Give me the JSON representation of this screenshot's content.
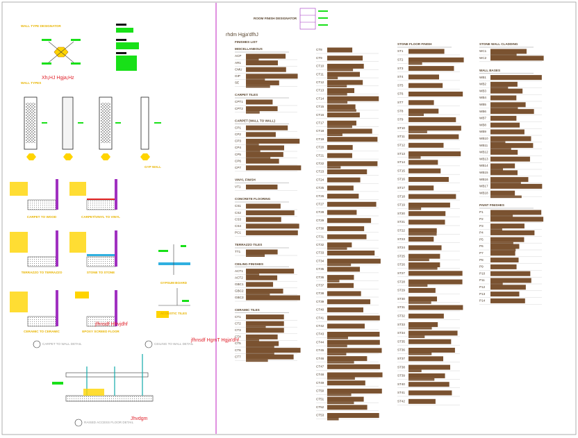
{
  "wall_legend": {
    "title": "WALL TYPE DESIGNATOR",
    "red_note": "Xh¡HJ Hgja¡Hz",
    "types_title": "WALL TYPES",
    "type_label": "GYP WALL"
  },
  "details": {
    "labels": [
      "CARPET TO WOOD",
      "CARPET/VINYL TO VINYL",
      "TERRAZZO TO TERRAZZO",
      "STONE TO STONE",
      "GYPSUM BOARD",
      "CERAMIC TO CERAMIC",
      "EPOXY SCREED FLOOR",
      "ACOUSTIC TILES"
    ],
    "notes": [
      "jfhnsdf Hfrvjdhf",
      "jfhnsdf HgmT Hgja'dhf",
      "Jhvdgm"
    ],
    "callouts": [
      "CARPET TO WALL DETAIL",
      "CEILING TO WALL DETAIL",
      "RAISED ACCESS FLOOR DETAIL"
    ]
  },
  "finishes": {
    "designator": "ROOM FINISH DESIGNATOR",
    "title": "rhdm Hgja'dfhJ",
    "list_title": "FINISHES LIST",
    "columns": [
      {
        "sections": [
          {
            "heading": "MISCELLANEOUS",
            "items": [
              "ACP",
              "AR1",
              "CMU",
              "GIP",
              "SE"
            ]
          },
          {
            "heading": "CARPET TILES",
            "items": [
              "CPT1",
              "CPT2"
            ]
          },
          {
            "heading": "CARPET (WALL TO WALL)",
            "items": [
              "CP1",
              "CP2",
              "CP3",
              "CP4",
              "CP5",
              "CP6",
              "CP7"
            ]
          },
          {
            "heading": "VINYL FINISH",
            "items": [
              "VT1"
            ]
          },
          {
            "heading": "CONCRETE FLOORING",
            "items": [
              "CS1",
              "CS2",
              "CS3",
              "CS4",
              "PC1"
            ]
          },
          {
            "heading": "TERRAZZO TILES",
            "items": [
              "TT1"
            ]
          },
          {
            "heading": "CEILING FINISHES",
            "items": [
              "ACT1",
              "ACT2",
              "GBC1",
              "GBC2",
              "GBC3"
            ]
          },
          {
            "heading": "CERAMIC TILES",
            "items": [
              "CT1",
              "CT2",
              "CT3",
              "CT4",
              "CT5",
              "CT6",
              "CT7"
            ]
          }
        ]
      },
      {
        "sections": [
          {
            "items": [
              "CT8",
              "CT9",
              "CT10",
              "CT11",
              "CT12",
              "CT13",
              "CT14",
              "CT15",
              "CT16",
              "CT17",
              "CT18",
              "CT19",
              "CT20",
              "CT21",
              "CT22",
              "CT23",
              "CT24",
              "CT25",
              "CT26",
              "CT27",
              "CT28",
              "CT29",
              "CT30",
              "CT31",
              "CT32",
              "CT33",
              "CT34",
              "CT35",
              "CT36",
              "CT37",
              "CT38",
              "CT39",
              "CT40",
              "CT41",
              "CT42",
              "CT43",
              "CT44",
              "CT45",
              "CT46",
              "CT47",
              "CT48",
              "CT49",
              "CT50",
              "CT51",
              "CT52",
              "CT53"
            ]
          }
        ]
      },
      {
        "sections": [
          {
            "heading": "STONE FLOOR FINISH",
            "items": [
              "ST1",
              "ST2",
              "ST3",
              "ST4",
              "ST5",
              "ST6",
              "ST7",
              "ST8",
              "ST9",
              "ST10",
              "ST11",
              "ST12",
              "ST13",
              "ST14",
              "ST15",
              "ST16",
              "ST17",
              "ST18",
              "ST19",
              "ST20",
              "ST21",
              "ST22",
              "ST23",
              "ST24",
              "ST25",
              "ST26",
              "ST27",
              "ST28",
              "ST29",
              "ST30",
              "ST31",
              "ST32",
              "ST33",
              "ST34",
              "ST35",
              "ST36",
              "ST37",
              "ST38",
              "ST39",
              "ST40",
              "ST41",
              "ST42"
            ]
          }
        ]
      },
      {
        "sections": [
          {
            "heading": "STONE WALL CLADDING",
            "items": [
              "WC1",
              "WC2"
            ]
          },
          {
            "heading": "WALL BASES",
            "items": [
              "WB1",
              "WB2",
              "WB3",
              "WB4",
              "WB5",
              "WB6",
              "WB7",
              "WB8",
              "WB9",
              "WB10",
              "WB11",
              "WB12",
              "WB13",
              "WB14",
              "WB15",
              "WB16",
              "WB17",
              "WB18"
            ]
          },
          {
            "heading": "PAINT FINISHES",
            "items": [
              "P1",
              "P2",
              "P3",
              "P4",
              "P5",
              "P6",
              "P7",
              "P8",
              "P9",
              "P10",
              "P11",
              "P12",
              "P13",
              "P14"
            ]
          }
        ]
      }
    ]
  }
}
